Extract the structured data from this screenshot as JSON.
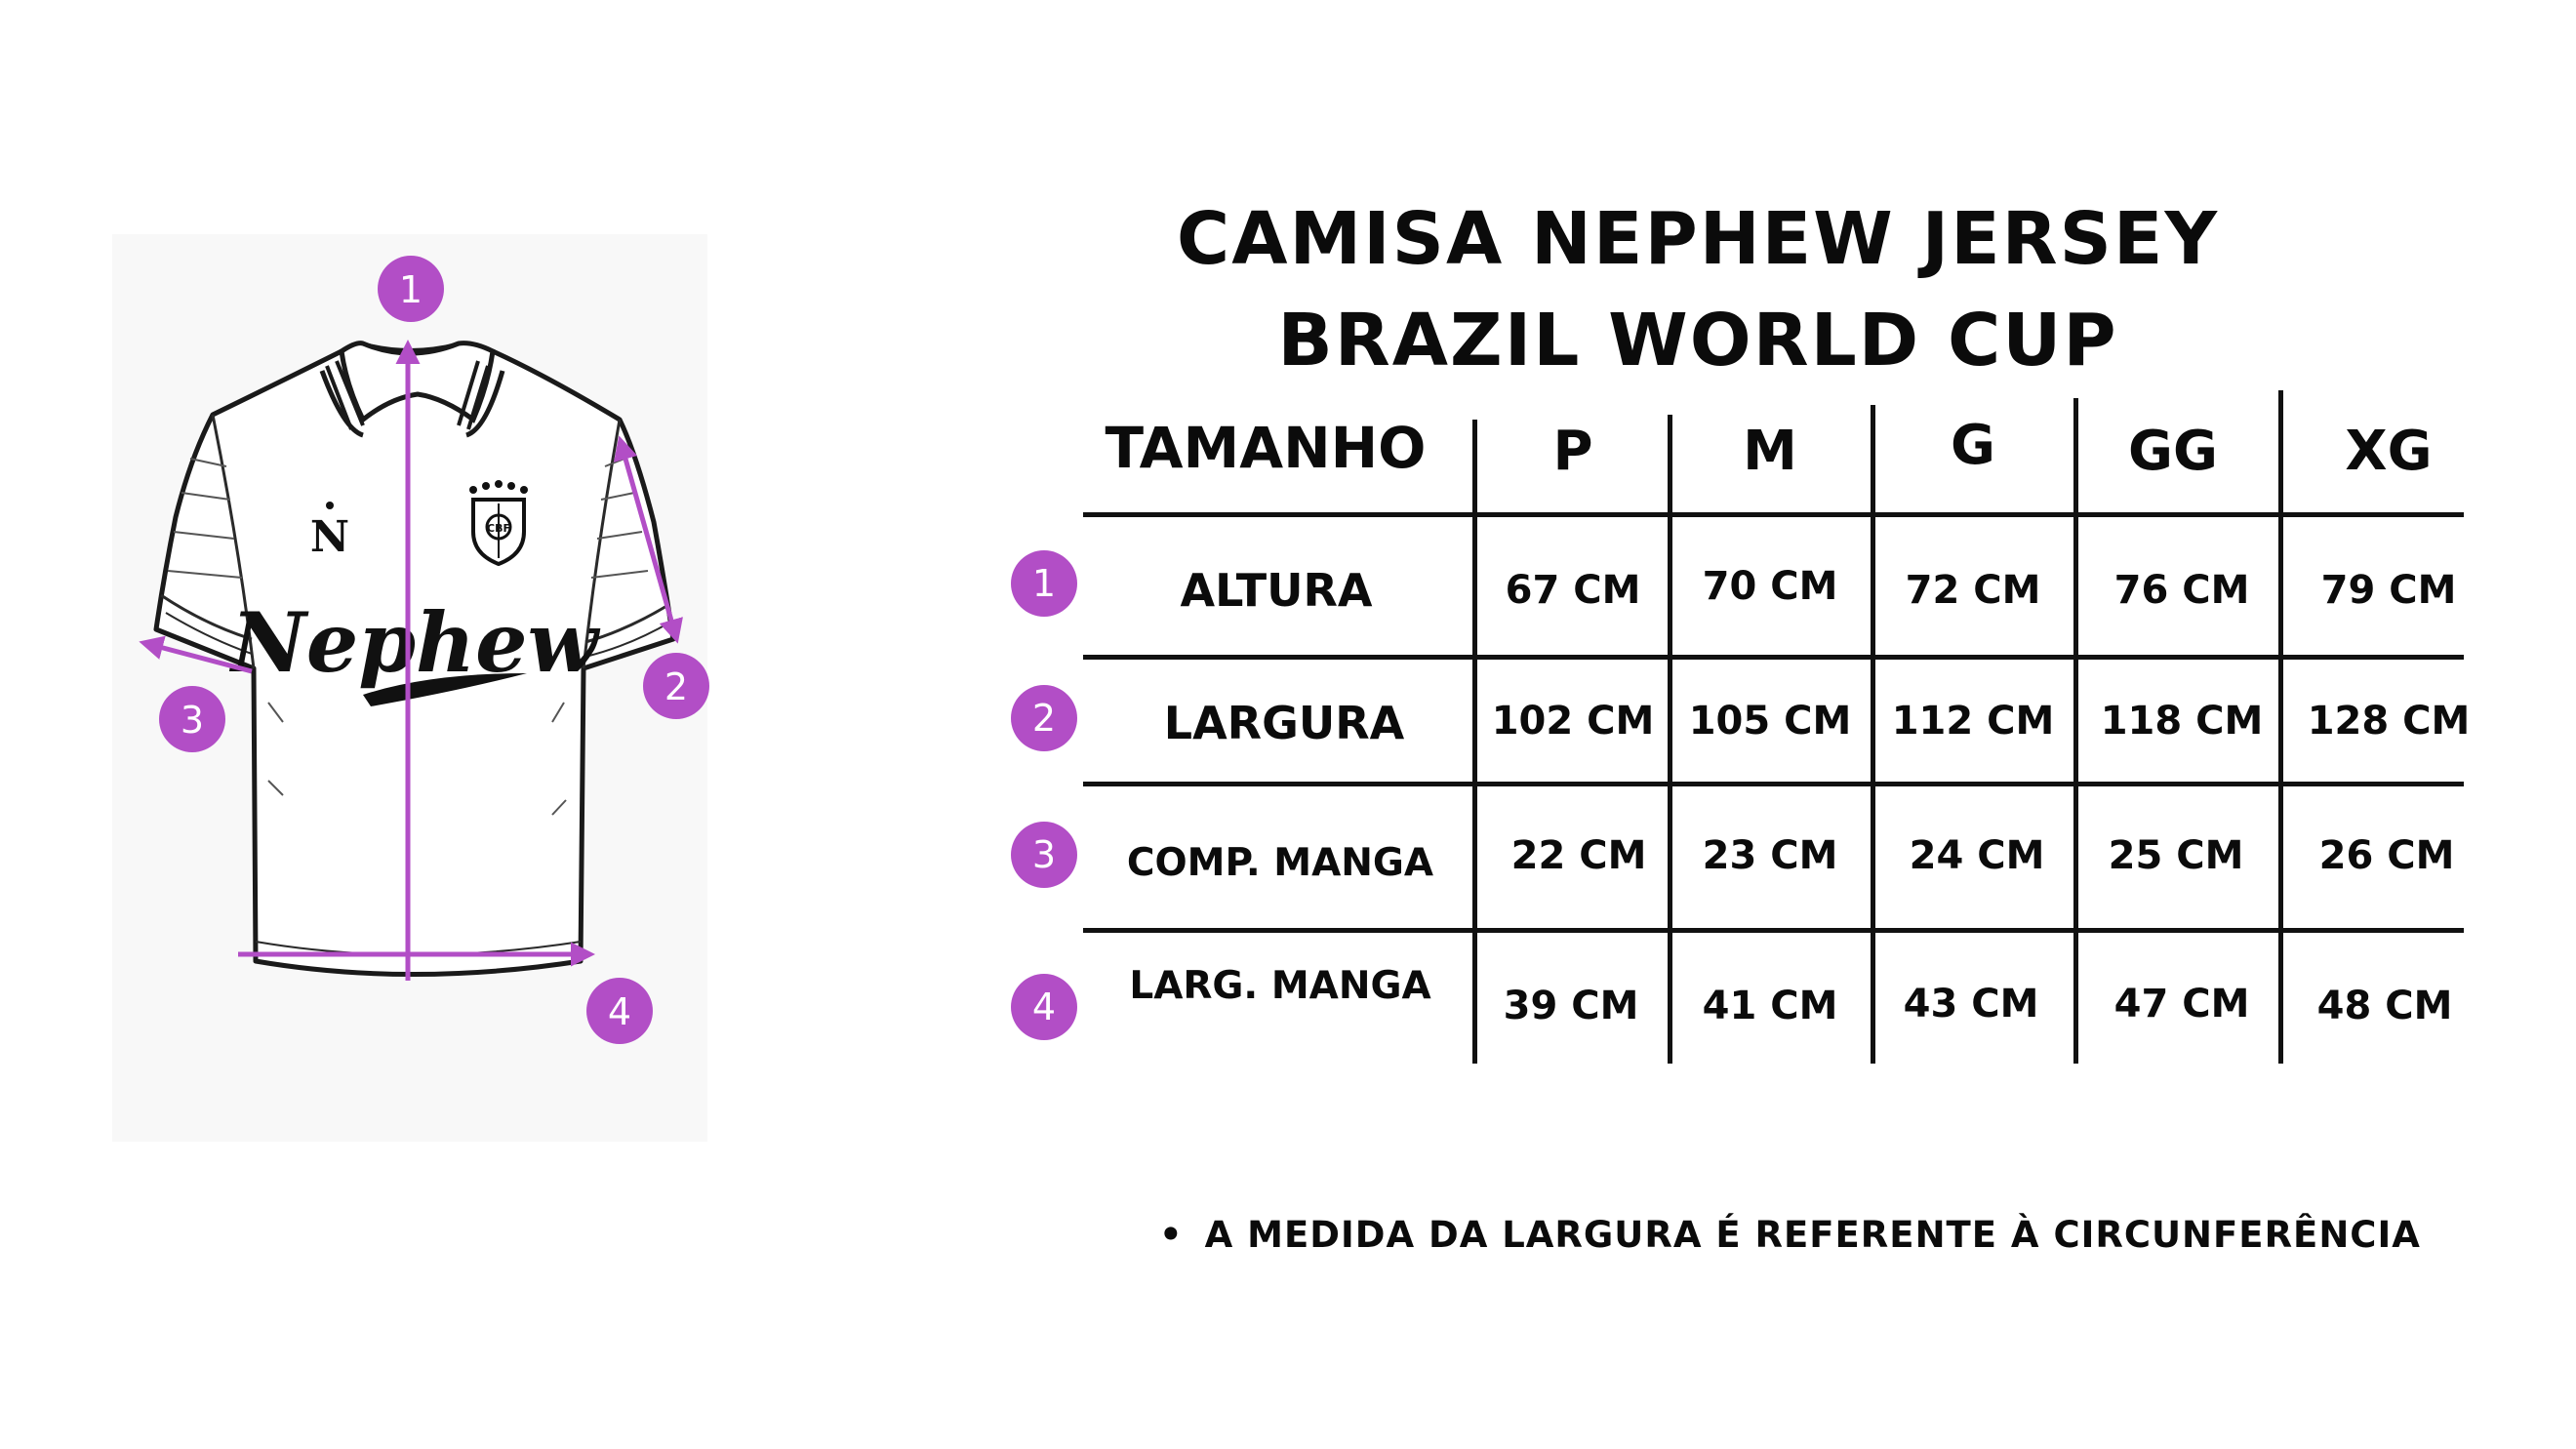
{
  "title": {
    "line1": "CAMISA NEPHEW JERSEY",
    "line2": "BRAZIL WORLD CUP"
  },
  "illustration": {
    "brand_text": "Nephew",
    "logo_letter": "N",
    "crest_text": "CBF",
    "marker_labels": [
      "1",
      "2",
      "3",
      "4"
    ],
    "marker_color": "#b24ec6"
  },
  "table": {
    "header_label": "TAMANHO",
    "sizes": [
      "P",
      "M",
      "G",
      "GG",
      "XG"
    ],
    "rows": [
      {
        "badge": "1",
        "label": "ALTURA",
        "values": [
          "67 CM",
          "70 CM",
          "72 CM",
          "76 CM",
          "79 CM"
        ]
      },
      {
        "badge": "2",
        "label": "LARGURA",
        "values": [
          "102 CM",
          "105 CM",
          "112 CM",
          "118 CM",
          "128 CM"
        ]
      },
      {
        "badge": "3",
        "label": "COMP. MANGA",
        "values": [
          "22 CM",
          "23 CM",
          "24 CM",
          "25 CM",
          "26 CM"
        ]
      },
      {
        "badge": "4",
        "label": "LARG. MANGA",
        "values": [
          "39 CM",
          "41 CM",
          "43 CM",
          "47 CM",
          "48 CM"
        ]
      }
    ]
  },
  "note": {
    "bullet": "•",
    "text": "A MEDIDA DA LARGURA É REFERENTE À CIRCUNFERÊNCIA"
  }
}
